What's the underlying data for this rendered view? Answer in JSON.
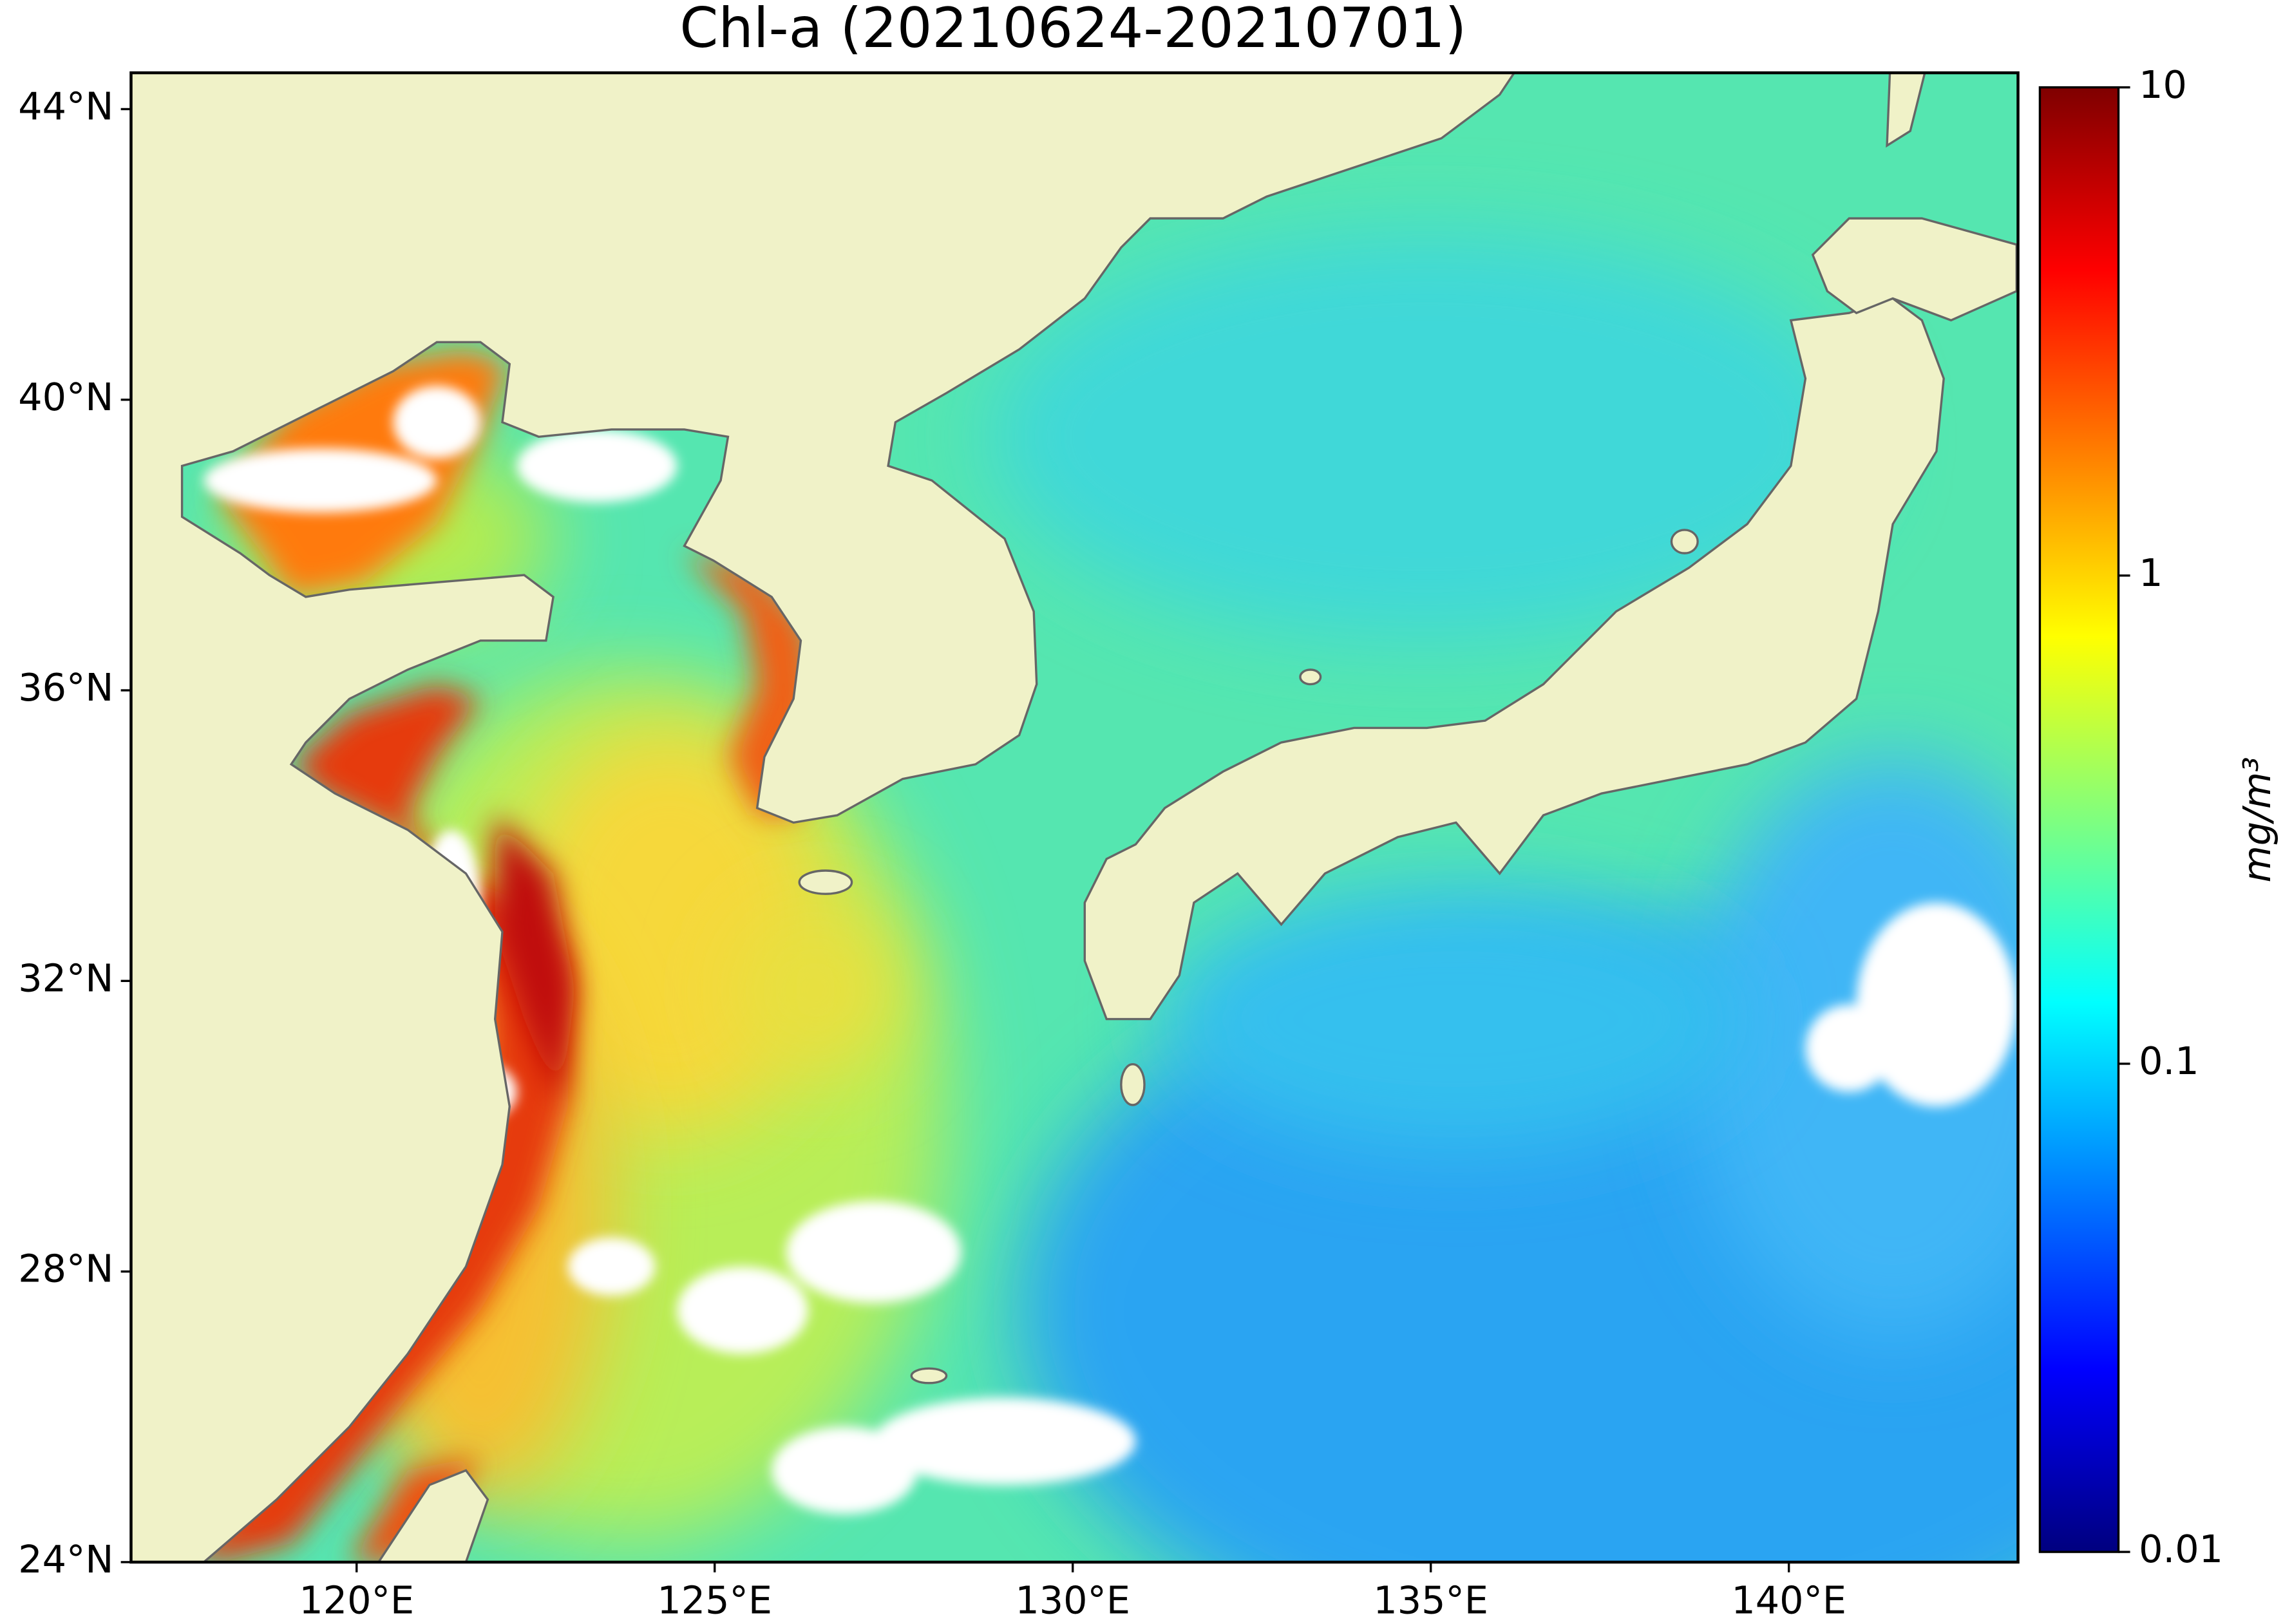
{
  "title": "Chl-a (20210624-20210701)",
  "map": {
    "xlim": [
      116.85,
      143.2
    ],
    "ylim": [
      24,
      44.5
    ],
    "xticks": [
      {
        "value": 120,
        "label": "120°E"
      },
      {
        "value": 125,
        "label": "125°E"
      },
      {
        "value": 130,
        "label": "130°E"
      },
      {
        "value": 135,
        "label": "135°E"
      },
      {
        "value": 140,
        "label": "140°E"
      }
    ],
    "yticks": [
      {
        "value": 24,
        "label": "24°N"
      },
      {
        "value": 28,
        "label": "28°N"
      },
      {
        "value": 32,
        "label": "32°N"
      },
      {
        "value": 36,
        "label": "36°N"
      },
      {
        "value": 40,
        "label": "40°N"
      },
      {
        "value": 44,
        "label": "44°N"
      }
    ]
  },
  "colorbar": {
    "label": "mg/m³",
    "scale": "log",
    "lim": [
      0.01,
      10
    ],
    "ticks": [
      0.01,
      0.1,
      1,
      10
    ],
    "colormap": "jet"
  }
}
